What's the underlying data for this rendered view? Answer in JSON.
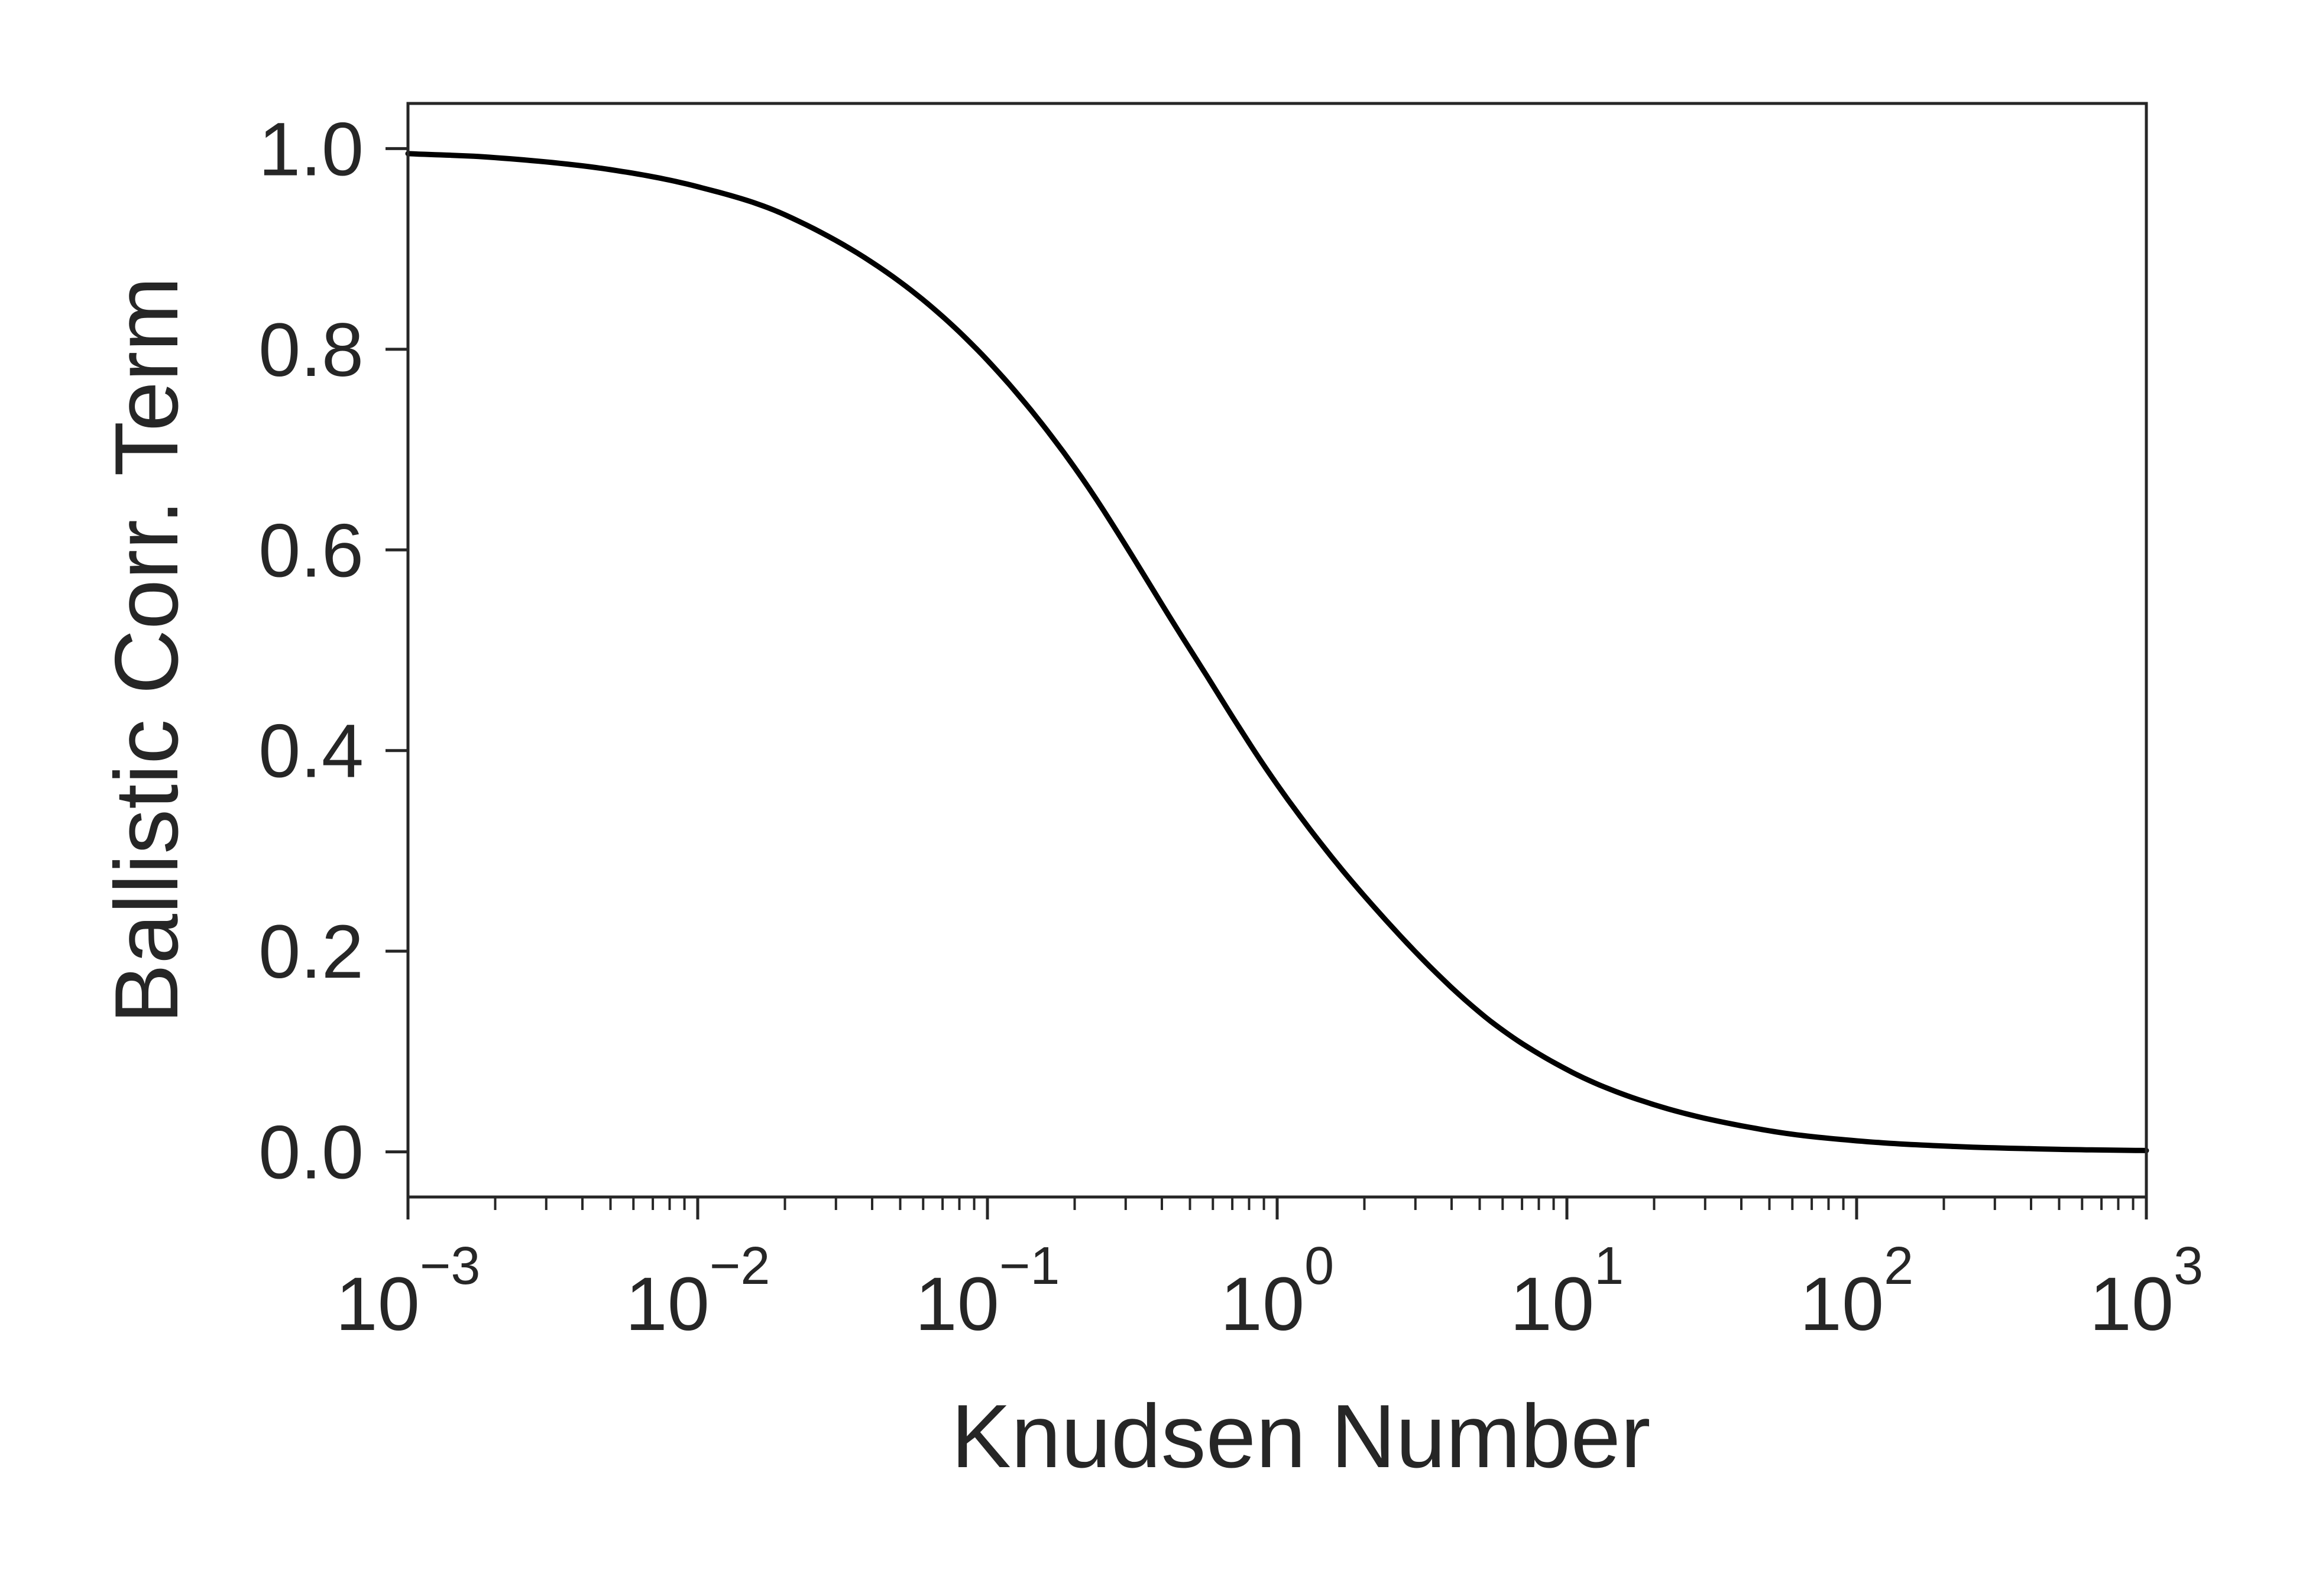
{
  "chart_data": {
    "type": "line",
    "title": "",
    "xlabel": "Knudsen Number",
    "ylabel": "Ballistic Corr. Term",
    "xscale": "log",
    "xlim": [
      0.001,
      1000
    ],
    "ylim": [
      -0.045,
      1.045
    ],
    "grid": false,
    "legend": "none",
    "line_color": "#000000",
    "xticks": [
      {
        "base": "10",
        "exp": "−3",
        "value": 0.001
      },
      {
        "base": "10",
        "exp": "−2",
        "value": 0.01
      },
      {
        "base": "10",
        "exp": "−1",
        "value": 0.1
      },
      {
        "base": "10",
        "exp": "0",
        "value": 1
      },
      {
        "base": "10",
        "exp": "1",
        "value": 10
      },
      {
        "base": "10",
        "exp": "2",
        "value": 100
      },
      {
        "base": "10",
        "exp": "3",
        "value": 1000
      }
    ],
    "yticks": [
      "0.0",
      "0.2",
      "0.4",
      "0.6",
      "0.8",
      "1.0"
    ],
    "series": [
      {
        "x": [
          0.001,
          0.002,
          0.005,
          0.01,
          0.02,
          0.05,
          0.1,
          0.2,
          0.5,
          1,
          2,
          5,
          10,
          20,
          50,
          100,
          200,
          500,
          1000
        ],
        "y": [
          0.995,
          0.991,
          0.979,
          0.962,
          0.934,
          0.867,
          0.789,
          0.682,
          0.501,
          0.366,
          0.255,
          0.139,
          0.082,
          0.047,
          0.021,
          0.011,
          0.0058,
          0.0025,
          0.0013
        ]
      }
    ]
  }
}
